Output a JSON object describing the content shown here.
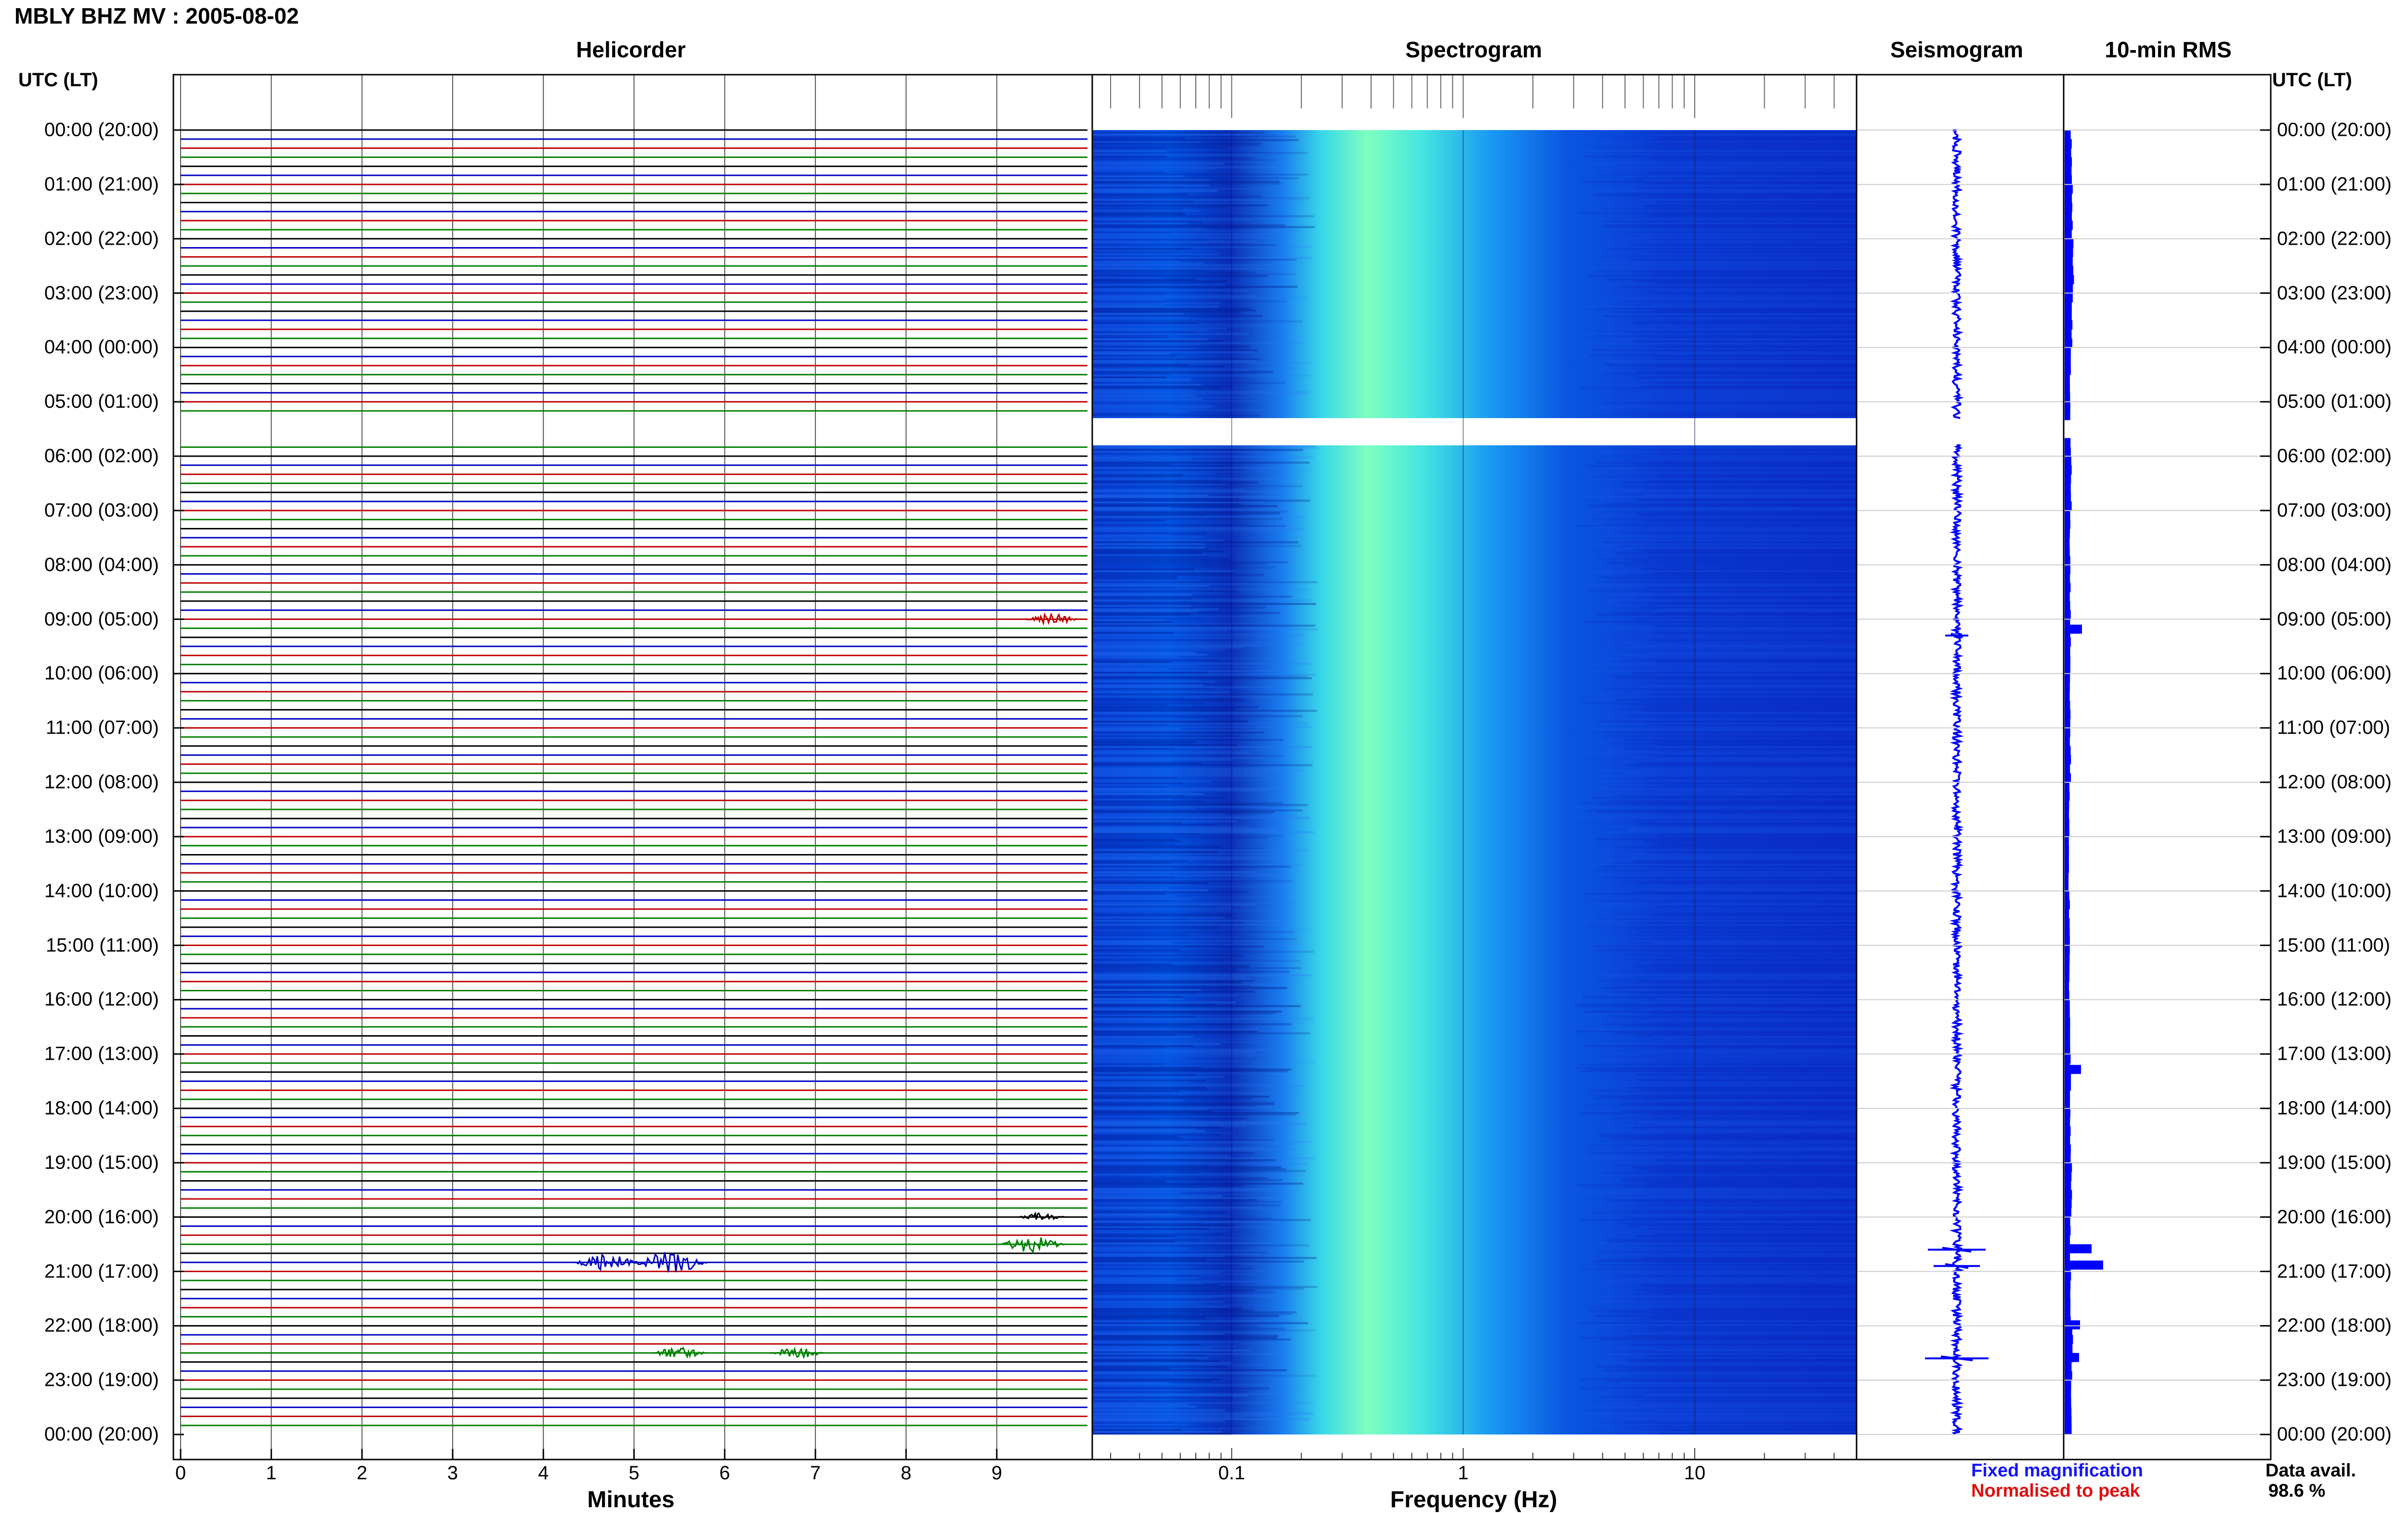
{
  "header": {
    "station_title": "MBLY BHZ MV : 2005-08-02"
  },
  "panels": {
    "helicorder_title": "Helicorder",
    "spectrogram_title": "Spectrogram",
    "seismogram_title": "Seismogram",
    "rms_title": "10-min RMS"
  },
  "axes": {
    "utc_left_header": "UTC (LT)",
    "utc_right_header": "UTC (LT)",
    "time_labels": [
      "00:00 (20:00)",
      "01:00 (21:00)",
      "02:00 (22:00)",
      "03:00 (23:00)",
      "04:00 (00:00)",
      "05:00 (01:00)",
      "06:00 (02:00)",
      "07:00 (03:00)",
      "08:00 (04:00)",
      "09:00 (05:00)",
      "10:00 (06:00)",
      "11:00 (07:00)",
      "12:00 (08:00)",
      "13:00 (09:00)",
      "14:00 (10:00)",
      "15:00 (11:00)",
      "16:00 (12:00)",
      "17:00 (13:00)",
      "18:00 (14:00)",
      "19:00 (15:00)",
      "20:00 (16:00)",
      "21:00 (17:00)",
      "22:00 (18:00)",
      "23:00 (19:00)",
      "00:00 (20:00)"
    ],
    "minutes_ticks": [
      "0",
      "1",
      "2",
      "3",
      "4",
      "5",
      "6",
      "7",
      "8",
      "9"
    ],
    "minutes_label": "Minutes",
    "frequency_ticks": [
      "0.1",
      "1",
      "10"
    ],
    "frequency_label": "Frequency (Hz)"
  },
  "legend": {
    "fixed_magnification": "Fixed magnification",
    "normalised_to_peak": "Normalised to peak",
    "fixed_color": "#1414ff",
    "normalised_color": "#e01010"
  },
  "availability": {
    "label": "Data avail.",
    "value": "98.6 %"
  },
  "colors": {
    "trace_cycle": [
      "#000000",
      "#0000c0",
      "#c00000",
      "#008000"
    ],
    "spectrogram_low": "#00008b",
    "spectrogram_high": "#7fffa0",
    "rms_bar": "#0000ff"
  },
  "chart_data": [
    {
      "type": "line",
      "name": "helicorder",
      "x_unit": "minutes",
      "xlim": [
        0,
        10
      ],
      "y_unit": "hour (UTC)",
      "ylim": [
        0,
        24
      ],
      "rows_per_hour": 6,
      "data_gap_hours": [
        5.3,
        5.8
      ],
      "events": [
        {
          "hour": 20.8,
          "minute": 4.7,
          "amplitude": 0.6
        },
        {
          "hour": 20.8,
          "minute": 5.4,
          "amplitude": 0.8
        },
        {
          "hour": 20.5,
          "minute": 9.4,
          "amplitude": 0.6
        },
        {
          "hour": 22.5,
          "minute": 5.5,
          "amplitude": 0.4
        },
        {
          "hour": 22.5,
          "minute": 6.8,
          "amplitude": 0.4
        },
        {
          "hour": 9.0,
          "minute": 9.6,
          "amplitude": 0.4
        },
        {
          "hour": 20.0,
          "minute": 9.5,
          "amplitude": 0.3
        }
      ]
    },
    {
      "type": "heatmap",
      "name": "spectrogram",
      "x_unit": "Hz",
      "x_scale": "log",
      "xlim": [
        0.025,
        50
      ],
      "ylim": [
        0,
        24
      ],
      "peak_band_hz": [
        0.25,
        0.6
      ],
      "data_gap_hours": [
        5.3,
        5.8
      ]
    },
    {
      "type": "line",
      "name": "seismogram",
      "ylim": [
        0,
        24
      ],
      "spikes": [
        {
          "hour": 20.6,
          "amplitude": 0.5
        },
        {
          "hour": 20.9,
          "amplitude": 0.4
        },
        {
          "hour": 22.6,
          "amplitude": 0.55
        },
        {
          "hour": 9.3,
          "amplitude": 0.2
        }
      ]
    },
    {
      "type": "bar",
      "name": "10-min RMS",
      "ylim": [
        0,
        24
      ],
      "bin_minutes": 10,
      "baseline_rms": [
        0.35,
        0.4,
        0.45,
        0.4,
        0.3,
        0.32,
        0.35,
        0.28,
        0.3,
        0.3,
        0.28,
        0.3,
        0.25,
        0.22,
        0.25,
        0.25,
        0.28,
        0.3,
        0.3,
        0.35,
        0.3,
        0.32,
        0.4,
        0.35
      ],
      "peaks": [
        {
          "hour": 9.1,
          "value": 0.9
        },
        {
          "hour": 17.2,
          "value": 0.85
        },
        {
          "hour": 20.5,
          "value": 1.4
        },
        {
          "hour": 20.8,
          "value": 2.0
        },
        {
          "hour": 21.9,
          "value": 0.8
        },
        {
          "hour": 22.5,
          "value": 0.75
        }
      ]
    }
  ]
}
